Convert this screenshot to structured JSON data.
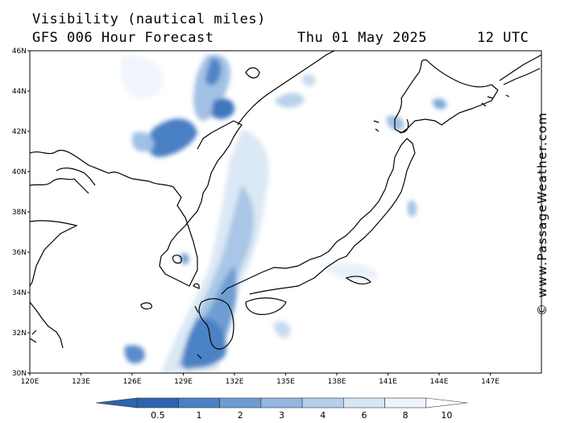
{
  "header": {
    "title": "Visibility (nautical miles)",
    "subtitle": "GFS 006 Hour Forecast",
    "date": "Thu 01 May 2025",
    "time": "12 UTC"
  },
  "map": {
    "lat_labels": [
      "30N",
      "32N",
      "34N",
      "36N",
      "38N",
      "40N",
      "42N",
      "44N",
      "46N"
    ],
    "lon_labels": [
      "120E",
      "123E",
      "126E",
      "129E",
      "132E",
      "135E",
      "138E",
      "141E",
      "144E",
      "147E"
    ],
    "lat_range": [
      30,
      46
    ],
    "lon_range": [
      120,
      150
    ],
    "colors": {
      "land_outline": "#000000",
      "low_visibility": "#3a6fb8",
      "background": "#ffffff"
    }
  },
  "colorbar": {
    "labels": [
      "0.5",
      "1",
      "2",
      "3",
      "4",
      "6",
      "8",
      "10"
    ],
    "colors": [
      "#2c64b0",
      "#4a80c4",
      "#6d9bd2",
      "#92b6df",
      "#b7cfea",
      "#d8e6f4",
      "#eef4fb",
      "#ffffff"
    ]
  },
  "credit": "© www.PassageWeather.com"
}
